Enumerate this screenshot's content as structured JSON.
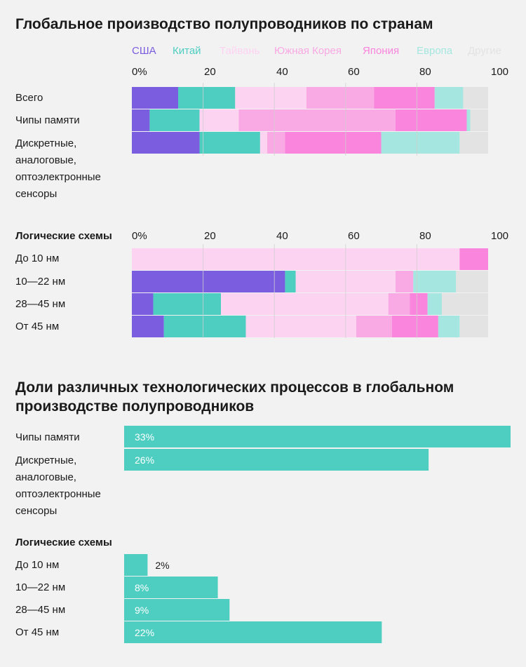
{
  "titles": {
    "production": "Глобальное производство полупроводников по странам",
    "shares": "Доли различных технологических процессов в глобальном производстве полупроводников"
  },
  "chart_data": [
    {
      "type": "bar",
      "stacked": true,
      "orientation": "horizontal",
      "title": "Глобальное производство полупроводников по странам",
      "xlim": [
        0,
        100
      ],
      "xticks": [
        "0%",
        "20",
        "40",
        "60",
        "80",
        "100"
      ],
      "legend_position": "top",
      "grid": true,
      "series": [
        {
          "name": "США",
          "color": "#7b5ddf"
        },
        {
          "name": "Китай",
          "color": "#4ecdc1"
        },
        {
          "name": "Тайвань",
          "color": "#fdd3f2"
        },
        {
          "name": "Южная Корея",
          "color": "#f9a9e3"
        },
        {
          "name": "Япония",
          "color": "#f985dc"
        },
        {
          "name": "Европа",
          "color": "#a5e7e0"
        },
        {
          "name": "Другие",
          "color": "#e3e3e3"
        }
      ],
      "groups": [
        {
          "label": "",
          "rows": [
            {
              "label": "Всего",
              "values": [
                13,
                16,
                20,
                19,
                17,
                8,
                7
              ]
            },
            {
              "label": "Чипы памяти",
              "values": [
                5,
                14,
                11,
                44,
                20,
                1,
                5
              ]
            },
            {
              "label": "Дискретные, аналоговые, оптоэлектронные сенсоры",
              "values": [
                19,
                17,
                2,
                5,
                27,
                22,
                8
              ]
            }
          ]
        },
        {
          "label": "Логические схемы",
          "rows": [
            {
              "label": "До 10 нм",
              "values": [
                0,
                0,
                92,
                0,
                8,
                0,
                0
              ]
            },
            {
              "label": "10—22 нм",
              "values": [
                43,
                3,
                28,
                5,
                0,
                12,
                9
              ]
            },
            {
              "label": "28—45 нм",
              "values": [
                6,
                19,
                47,
                6,
                5,
                4,
                13
              ]
            },
            {
              "label": "От 45 нм",
              "values": [
                9,
                23,
                31,
                10,
                13,
                6,
                8
              ]
            }
          ]
        }
      ]
    },
    {
      "type": "bar",
      "orientation": "horizontal",
      "title": "Доли различных технологических процессов в глобальном производстве полупроводников",
      "color": "#4ecdc1",
      "groups": [
        {
          "label": "",
          "rows": [
            {
              "label": "Чипы памяти",
              "value": 33,
              "text": "33%"
            },
            {
              "label": "Дискретные, аналоговые, оптоэлектронные сенсоры",
              "value": 26,
              "text": "26%"
            }
          ]
        },
        {
          "label": "Логические схемы",
          "rows": [
            {
              "label": "До 10 нм",
              "value": 2,
              "text": "2%"
            },
            {
              "label": "10—22 нм",
              "value": 8,
              "text": "8%"
            },
            {
              "label": "28—45 нм",
              "value": 9,
              "text": "9%"
            },
            {
              "label": "От 45 нм",
              "value": 22,
              "text": "22%"
            }
          ]
        }
      ]
    }
  ]
}
